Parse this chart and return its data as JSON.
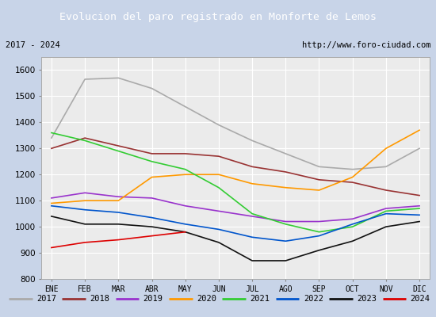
{
  "title": "Evolucion del paro registrado en Monforte de Lemos",
  "title_bg": "#4472c4",
  "subtitle_left": "2017 - 2024",
  "subtitle_right": "http://www.foro-ciudad.com",
  "months": [
    "ENE",
    "FEB",
    "MAR",
    "ABR",
    "MAY",
    "JUN",
    "JUL",
    "AGO",
    "SEP",
    "OCT",
    "NOV",
    "DIC"
  ],
  "ylim": [
    800,
    1650
  ],
  "yticks": [
    800,
    900,
    1000,
    1100,
    1200,
    1300,
    1400,
    1500,
    1600
  ],
  "series": {
    "2017": {
      "color": "#aaaaaa",
      "style": "-",
      "data": [
        1340,
        1565,
        1570,
        1530,
        1460,
        1390,
        1330,
        1280,
        1230,
        1220,
        1230,
        1300
      ]
    },
    "2018": {
      "color": "#993333",
      "style": "-",
      "data": [
        1300,
        1340,
        1310,
        1280,
        1280,
        1270,
        1230,
        1210,
        1180,
        1170,
        1140,
        1120
      ]
    },
    "2019": {
      "color": "#9933cc",
      "style": "-",
      "data": [
        1110,
        1130,
        1115,
        1110,
        1080,
        1060,
        1040,
        1020,
        1020,
        1030,
        1070,
        1080
      ]
    },
    "2020": {
      "color": "#ff9900",
      "style": "-",
      "data": [
        1090,
        1100,
        1100,
        1190,
        1200,
        1200,
        1165,
        1150,
        1140,
        1190,
        1300,
        1370
      ]
    },
    "2021": {
      "color": "#33cc33",
      "style": "-",
      "data": [
        1360,
        1330,
        1290,
        1250,
        1220,
        1150,
        1050,
        1010,
        980,
        1000,
        1060,
        1070
      ]
    },
    "2022": {
      "color": "#0055cc",
      "style": "-",
      "data": [
        1080,
        1065,
        1055,
        1035,
        1010,
        990,
        960,
        945,
        965,
        1010,
        1050,
        1045
      ]
    },
    "2023": {
      "color": "#111111",
      "style": "-",
      "data": [
        1040,
        1010,
        1010,
        1000,
        980,
        940,
        870,
        870,
        910,
        945,
        1000,
        1020
      ]
    },
    "2024": {
      "color": "#dd0000",
      "style": "-",
      "data": [
        920,
        940,
        950,
        965,
        980,
        null,
        null,
        null,
        null,
        null,
        null,
        null
      ]
    }
  }
}
